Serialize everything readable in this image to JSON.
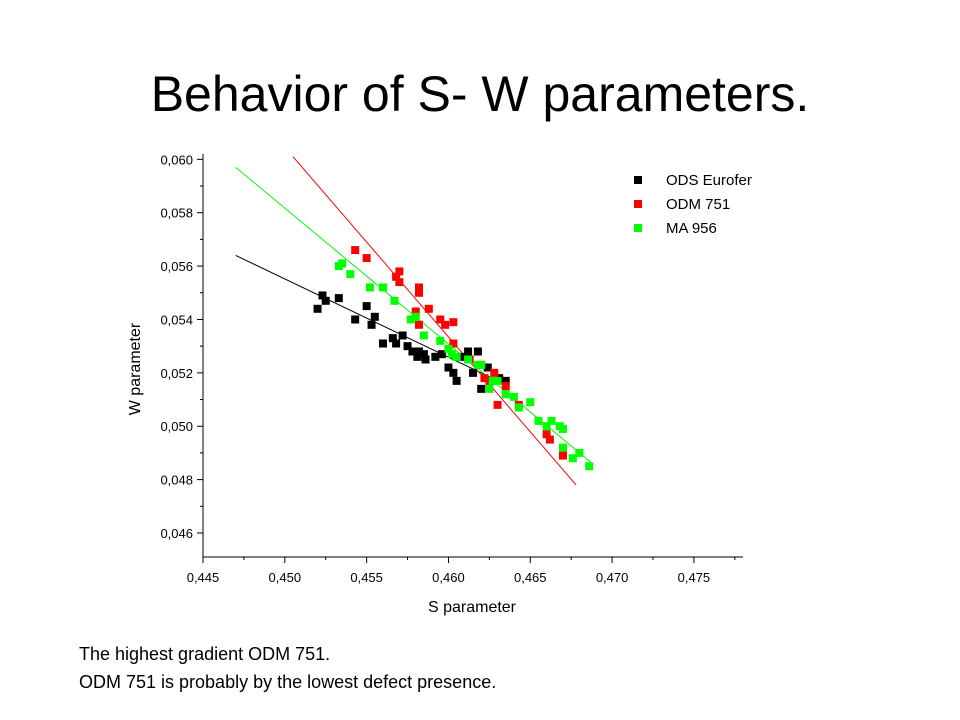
{
  "slide": {
    "title": "Behavior of S- W parameters.",
    "caption_lines": [
      "The highest gradient ODM 751.",
      "ODM 751 is probably by the lowest defect presence."
    ]
  },
  "chart_data": {
    "type": "scatter",
    "title": "",
    "xlabel": "S parameter",
    "ylabel": "W parameter",
    "xlim": [
      0.445,
      0.478
    ],
    "ylim": [
      0.0451,
      0.0602
    ],
    "x_ticks": [
      0.445,
      0.45,
      0.455,
      0.46,
      0.465,
      0.47,
      0.475
    ],
    "x_tick_labels": [
      "0,445",
      "0,450",
      "0,455",
      "0,460",
      "0,465",
      "0,470",
      "0,475"
    ],
    "y_ticks": [
      0.046,
      0.048,
      0.05,
      0.052,
      0.054,
      0.056,
      0.058,
      0.06
    ],
    "y_tick_labels": [
      "0,046",
      "0,048",
      "0,050",
      "0,052",
      "0,054",
      "0,056",
      "0,058",
      "0,060"
    ],
    "grid": false,
    "legend_position": "top-right",
    "series": [
      {
        "name": "ODS Eurofer",
        "color": "#000000",
        "fit": {
          "x": [
            0.447,
            0.4637
          ],
          "y": [
            0.0564,
            0.0515
          ]
        },
        "points": [
          [
            0.452,
            0.0544
          ],
          [
            0.4523,
            0.0549
          ],
          [
            0.4525,
            0.0547
          ],
          [
            0.4533,
            0.0548
          ],
          [
            0.4543,
            0.054
          ],
          [
            0.455,
            0.0545
          ],
          [
            0.4553,
            0.0538
          ],
          [
            0.4555,
            0.0541
          ],
          [
            0.456,
            0.0531
          ],
          [
            0.4566,
            0.0533
          ],
          [
            0.4568,
            0.0531
          ],
          [
            0.4572,
            0.0534
          ],
          [
            0.4575,
            0.053
          ],
          [
            0.4578,
            0.0528
          ],
          [
            0.4581,
            0.0526
          ],
          [
            0.4582,
            0.0528
          ],
          [
            0.4585,
            0.0527
          ],
          [
            0.4586,
            0.0525
          ],
          [
            0.4592,
            0.0526
          ],
          [
            0.4596,
            0.0527
          ],
          [
            0.46,
            0.0522
          ],
          [
            0.4603,
            0.052
          ],
          [
            0.4605,
            0.0517
          ],
          [
            0.4608,
            0.0526
          ],
          [
            0.4612,
            0.0528
          ],
          [
            0.4615,
            0.052
          ],
          [
            0.4618,
            0.0528
          ],
          [
            0.462,
            0.0514
          ],
          [
            0.4624,
            0.0522
          ],
          [
            0.4626,
            0.0517
          ],
          [
            0.4631,
            0.0518
          ],
          [
            0.4635,
            0.0517
          ]
        ]
      },
      {
        "name": "ODM 751",
        "color": "#ff0000",
        "fit": {
          "x": [
            0.4505,
            0.4678
          ],
          "y": [
            0.0601,
            0.0478
          ]
        },
        "points": [
          [
            0.4543,
            0.0566
          ],
          [
            0.455,
            0.0563
          ],
          [
            0.4568,
            0.0556
          ],
          [
            0.457,
            0.0558
          ],
          [
            0.457,
            0.0554
          ],
          [
            0.458,
            0.0543
          ],
          [
            0.4582,
            0.0552
          ],
          [
            0.4582,
            0.055
          ],
          [
            0.4582,
            0.0538
          ],
          [
            0.4588,
            0.0544
          ],
          [
            0.4595,
            0.054
          ],
          [
            0.4598,
            0.0538
          ],
          [
            0.4603,
            0.0539
          ],
          [
            0.4603,
            0.0531
          ],
          [
            0.4613,
            0.0525
          ],
          [
            0.462,
            0.0523
          ],
          [
            0.4622,
            0.0518
          ],
          [
            0.4625,
            0.0515
          ],
          [
            0.4628,
            0.052
          ],
          [
            0.463,
            0.0508
          ],
          [
            0.4635,
            0.0515
          ],
          [
            0.4643,
            0.0508
          ],
          [
            0.466,
            0.0497
          ],
          [
            0.4662,
            0.0495
          ],
          [
            0.467,
            0.0489
          ]
        ]
      },
      {
        "name": "MA 956",
        "color": "#00ff00",
        "fit": {
          "x": [
            0.447,
            0.4688
          ],
          "y": [
            0.0597,
            0.0486
          ]
        },
        "points": [
          [
            0.4533,
            0.056
          ],
          [
            0.4535,
            0.0561
          ],
          [
            0.454,
            0.0557
          ],
          [
            0.4552,
            0.0552
          ],
          [
            0.456,
            0.0552
          ],
          [
            0.4567,
            0.0547
          ],
          [
            0.4577,
            0.054
          ],
          [
            0.458,
            0.0541
          ],
          [
            0.4585,
            0.0534
          ],
          [
            0.4595,
            0.0532
          ],
          [
            0.46,
            0.0529
          ],
          [
            0.4602,
            0.0527
          ],
          [
            0.4605,
            0.0526
          ],
          [
            0.4612,
            0.0525
          ],
          [
            0.4618,
            0.0523
          ],
          [
            0.462,
            0.0523
          ],
          [
            0.4625,
            0.0514
          ],
          [
            0.4627,
            0.0517
          ],
          [
            0.463,
            0.0517
          ],
          [
            0.4635,
            0.0512
          ],
          [
            0.464,
            0.0511
          ],
          [
            0.4643,
            0.0507
          ],
          [
            0.465,
            0.0509
          ],
          [
            0.4655,
            0.0502
          ],
          [
            0.466,
            0.05
          ],
          [
            0.4663,
            0.0502
          ],
          [
            0.4668,
            0.05
          ],
          [
            0.467,
            0.0499
          ],
          [
            0.467,
            0.0492
          ],
          [
            0.4676,
            0.0488
          ],
          [
            0.468,
            0.049
          ],
          [
            0.4686,
            0.0485
          ]
        ]
      }
    ]
  }
}
